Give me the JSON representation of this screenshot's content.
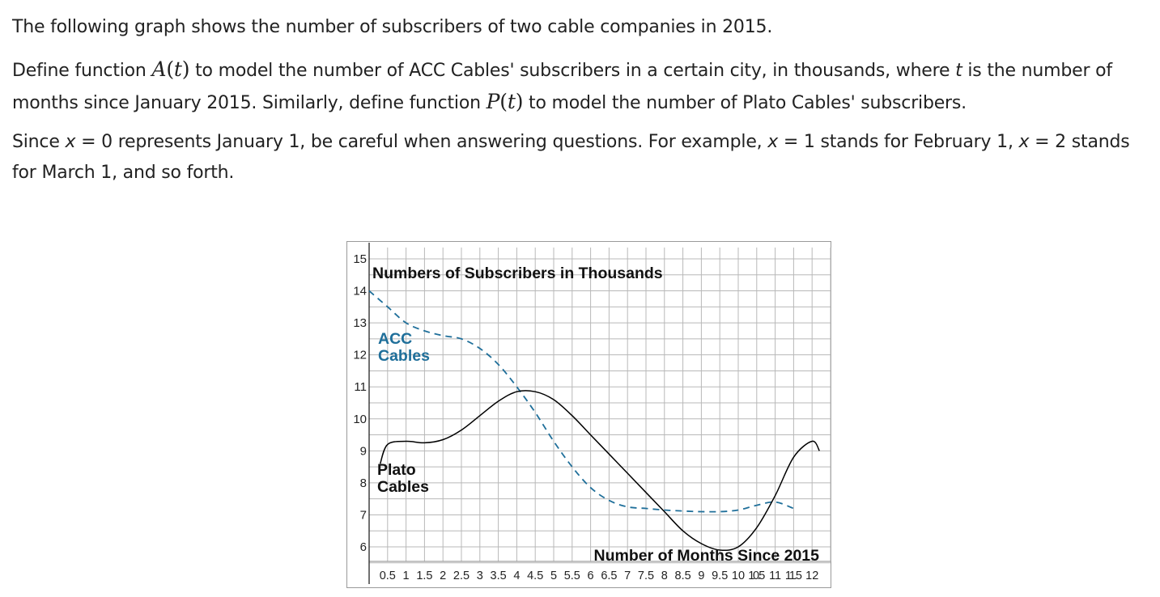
{
  "intro": {
    "sentence1": "The following graph shows the number of subscribers of two cable companies in 2015.",
    "sentence2_part1": "Define function ",
    "func_a": "A",
    "arg_t": "t",
    "sentence2_part2": " to model the number of ACC Cables' subscribers in a certain city, in thousands, where ",
    "var_t": "t",
    "sentence2_part3": " is the number of months since January 2015. Similarly, define function ",
    "func_p": "P",
    "sentence2_part4": " to model the number of Plato Cables' subscribers.",
    "sentence3_part1": "Since ",
    "var_x": "x",
    "sentence3_part2": " = 0 represents January 1, be careful when answering questions. For example, ",
    "sentence3_part3": " = 1 stands for February 1, ",
    "sentence3_part4": " = 2 stands for March 1, and so forth."
  },
  "chart_data": {
    "type": "line",
    "title": "Numbers of Subscribers in Thousands",
    "xlabel": "Number of Months Since 2015",
    "ylabel": "",
    "xlim": [
      0,
      12.5
    ],
    "ylim": [
      5,
      15
    ],
    "x_ticks": [
      "0.5",
      "1",
      "1.5",
      "2",
      "2.5",
      "3",
      "3.5",
      "4",
      "4.5",
      "5",
      "5.5",
      "6",
      "6.5",
      "7",
      "7.5",
      "8",
      "8.5",
      "9",
      "9.5",
      "10",
      "10.5",
      "11",
      "11.5",
      "12"
    ],
    "y_ticks": [
      "6",
      "7",
      "8",
      "9",
      "10",
      "11",
      "12",
      "13",
      "14",
      "15"
    ],
    "grid": true,
    "series": [
      {
        "name": "ACC Cables",
        "style": "dashed",
        "color": "#1f6f9a",
        "points": [
          [
            0,
            14
          ],
          [
            0.5,
            13.5
          ],
          [
            1,
            13.0
          ],
          [
            1.5,
            12.75
          ],
          [
            2,
            12.6
          ],
          [
            2.5,
            12.5
          ],
          [
            3,
            12.2
          ],
          [
            3.5,
            11.7
          ],
          [
            4,
            11.0
          ],
          [
            4.5,
            10.2
          ],
          [
            5,
            9.3
          ],
          [
            5.5,
            8.5
          ],
          [
            6,
            7.85
          ],
          [
            6.5,
            7.45
          ],
          [
            7,
            7.25
          ],
          [
            7.5,
            7.2
          ],
          [
            8,
            7.15
          ],
          [
            8.5,
            7.12
          ],
          [
            9,
            7.1
          ],
          [
            9.5,
            7.1
          ],
          [
            10,
            7.15
          ],
          [
            10.5,
            7.3
          ],
          [
            11,
            7.4
          ],
          [
            11.5,
            7.2
          ]
        ]
      },
      {
        "name": "Plato Cables",
        "style": "solid",
        "color": "#000000",
        "points": [
          [
            0.3,
            8.6
          ],
          [
            0.5,
            9.2
          ],
          [
            1,
            9.3
          ],
          [
            1.5,
            9.25
          ],
          [
            2,
            9.35
          ],
          [
            2.5,
            9.65
          ],
          [
            3,
            10.1
          ],
          [
            3.5,
            10.55
          ],
          [
            4,
            10.85
          ],
          [
            4.5,
            10.85
          ],
          [
            5,
            10.6
          ],
          [
            5.5,
            10.1
          ],
          [
            6,
            9.5
          ],
          [
            6.5,
            8.9
          ],
          [
            7,
            8.3
          ],
          [
            7.5,
            7.7
          ],
          [
            8,
            7.1
          ],
          [
            8.5,
            6.5
          ],
          [
            9,
            6.1
          ],
          [
            9.5,
            5.9
          ],
          [
            10,
            6.0
          ],
          [
            10.5,
            6.6
          ],
          [
            11,
            7.6
          ],
          [
            11.5,
            8.8
          ],
          [
            12,
            9.3
          ],
          [
            12.2,
            9.0
          ]
        ]
      }
    ]
  }
}
